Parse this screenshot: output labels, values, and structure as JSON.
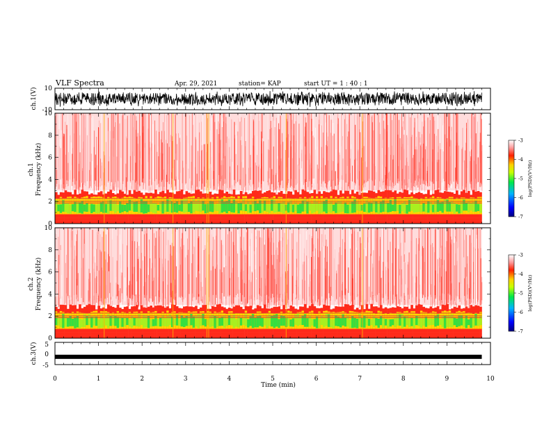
{
  "header": {
    "title": "VLF Spectra",
    "date": "Apr. 29, 2021",
    "station": "station= KAP",
    "start": "start  UT =   1 : 40 : 1"
  },
  "colors": {
    "spectrum_high": "#ff2a1a",
    "spectrum_mid": "#ffd800",
    "spectrum_low": "#35e040",
    "trace": "#000000"
  },
  "chart_data": [
    {
      "type": "line",
      "id": "ch1-waveform",
      "ylabel": "ch.1(V)",
      "ylim": [
        -10,
        10
      ],
      "yticks": [
        "10",
        "-10"
      ],
      "xlim": [
        0,
        10
      ],
      "description_values": "dense waveform oscillating roughly between -7 and 7 V over 0–9.8 min"
    },
    {
      "type": "heatmap",
      "id": "ch1-spectrogram",
      "ylabel": "ch.1",
      "ylabel2": "Frequency (kHz)",
      "ylim": [
        0,
        10
      ],
      "yticks": [
        "0",
        "2",
        "4",
        "6",
        "8",
        "10"
      ],
      "xlim": [
        0,
        10
      ],
      "colorbar": {
        "label": "log(PSD)(V²/Hz)",
        "range": [
          -7,
          -3
        ],
        "ticks": [
          "-3",
          "-4",
          "-5",
          "-6",
          "-7"
        ]
      },
      "bands_khz": {
        "strong_upper_edge": 2.8,
        "green_core": [
          1.0,
          2.2
        ]
      }
    },
    {
      "type": "heatmap",
      "id": "ch2-spectrogram",
      "ylabel": "ch.2",
      "ylabel2": "Frequency (kHz)",
      "ylim": [
        0,
        10
      ],
      "yticks": [
        "0",
        "2",
        "4",
        "6",
        "8",
        "10"
      ],
      "xlim": [
        0,
        10
      ],
      "colorbar": {
        "label": "log(PSD)(V²/Hz)",
        "range": [
          -7,
          -3
        ],
        "ticks": [
          "-3",
          "-4",
          "-5",
          "-6",
          "-7"
        ]
      },
      "bands_khz": {
        "strong_upper_edge": 2.8,
        "green_core": [
          1.0,
          2.2
        ]
      }
    },
    {
      "type": "line",
      "id": "ch3-waveform",
      "ylabel": "ch.3(V)",
      "ylim": [
        -5,
        5
      ],
      "yticks": [
        "5",
        "0",
        "-5"
      ],
      "xlim": [
        0,
        10
      ],
      "description_values": "thick nearly constant trace near -1.5 V from 0 to 9.8 min"
    }
  ],
  "xaxis": {
    "label": "Time (min)",
    "ticks": [
      "0",
      "1",
      "2",
      "3",
      "4",
      "5",
      "6",
      "7",
      "8",
      "9",
      "10"
    ]
  }
}
